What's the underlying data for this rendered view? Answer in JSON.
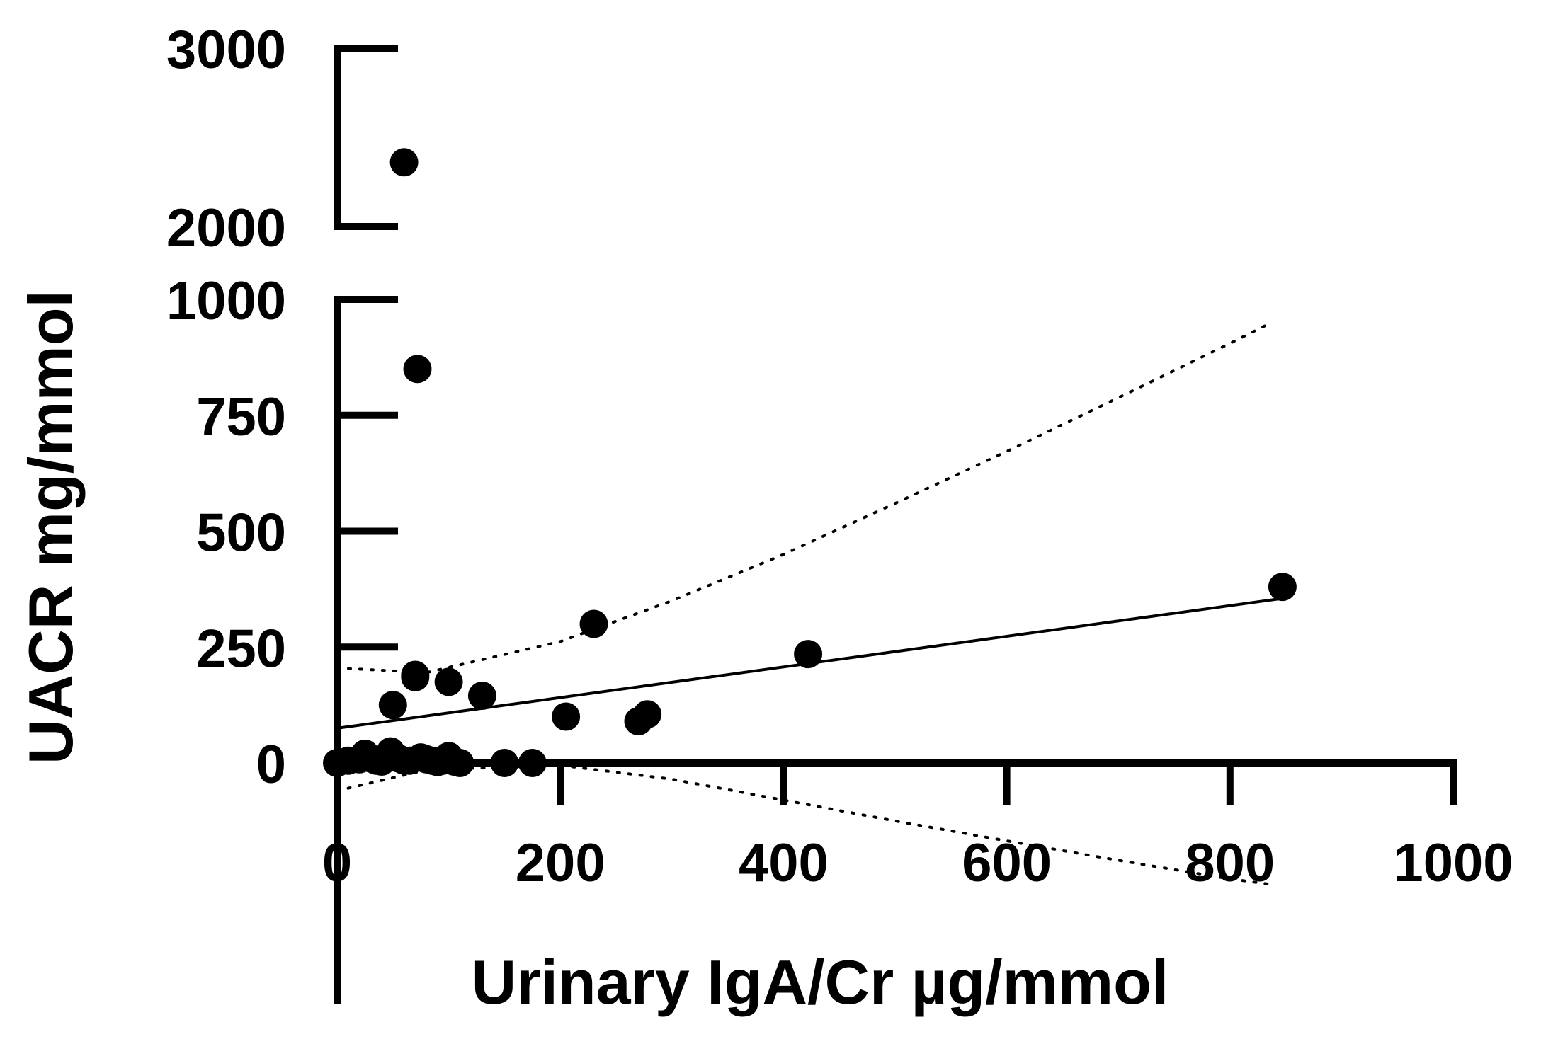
{
  "chart_data": {
    "type": "scatter",
    "title": "",
    "xlabel": "Urinary IgA/Cr µg/mmol",
    "ylabel": "UACR mg/mmol",
    "xlim": [
      0,
      1000
    ],
    "x_ticks": [
      "0",
      "200",
      "400",
      "600",
      "800",
      "1000"
    ],
    "y_axis_break": {
      "lower_segment": {
        "ylim": [
          0,
          1000
        ],
        "ticks": [
          "0",
          "250",
          "500",
          "750",
          "1000"
        ]
      },
      "upper_segment": {
        "ylim": [
          2000,
          3000
        ],
        "ticks": [
          "2000",
          "3000"
        ]
      }
    },
    "grid": false,
    "legend": "none",
    "colors": {
      "points": "#000000",
      "lines": "#000000"
    },
    "series": [
      {
        "type": "scatter",
        "x": [
          0,
          10,
          20,
          25,
          30,
          35,
          40,
          45,
          48,
          50,
          55,
          60,
          65,
          70,
          72,
          75,
          80,
          85,
          90,
          95,
          100,
          105,
          110,
          150,
          175,
          50,
          60,
          70,
          100,
          130,
          205,
          230,
          270,
          278,
          422,
          847
        ],
        "y": [
          0,
          5,
          8,
          20,
          10,
          5,
          3,
          15,
          25,
          18,
          10,
          2360,
          5,
          185,
          850,
          12,
          8,
          5,
          2,
          5,
          15,
          3,
          0,
          0,
          0,
          125,
          5,
          190,
          175,
          145,
          100,
          300,
          90,
          105,
          235,
          380
        ]
      },
      {
        "type": "line",
        "role": "linear regression",
        "x": [
          0,
          847
        ],
        "y": [
          75,
          355
        ]
      },
      {
        "type": "line",
        "role": "upper confidence band",
        "x": [
          0,
          80,
          200,
          300,
          400,
          500,
          600,
          700,
          800,
          837
        ],
        "y": [
          205,
          195,
          262,
          350,
          450,
          560,
          672,
          788,
          905,
          950
        ]
      },
      {
        "type": "line",
        "role": "lower confidence band",
        "x": [
          0,
          80,
          200,
          300,
          400,
          500,
          600,
          700,
          800,
          837
        ],
        "y": [
          -60,
          -15,
          -5,
          -35,
          -80,
          -125,
          -168,
          -210,
          -250,
          -262
        ]
      }
    ]
  }
}
